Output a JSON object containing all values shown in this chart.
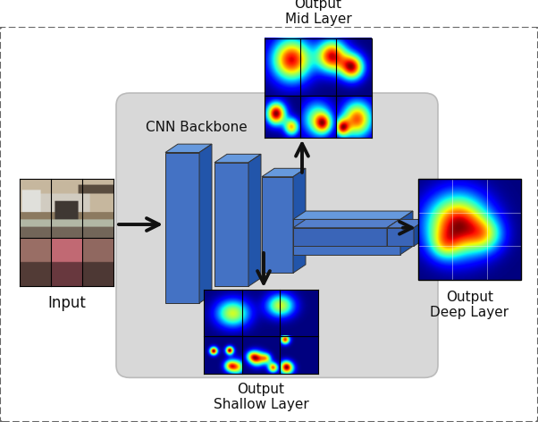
{
  "bg_color": "#ffffff",
  "border_color": "#666666",
  "backbone_label": "CNN Backbone",
  "input_label": "Input",
  "output_mid_label": "Output\nMid Layer",
  "output_shallow_label": "Output\nShallow Layer",
  "output_deep_label": "Output\nDeep Layer",
  "block_color_face": "#4472c4",
  "block_color_top": "#6699dd",
  "block_color_side": "#2255aa",
  "arrow_color": "#111111",
  "text_color": "#111111",
  "figsize": [
    6.02,
    4.72
  ],
  "dpi": 100
}
